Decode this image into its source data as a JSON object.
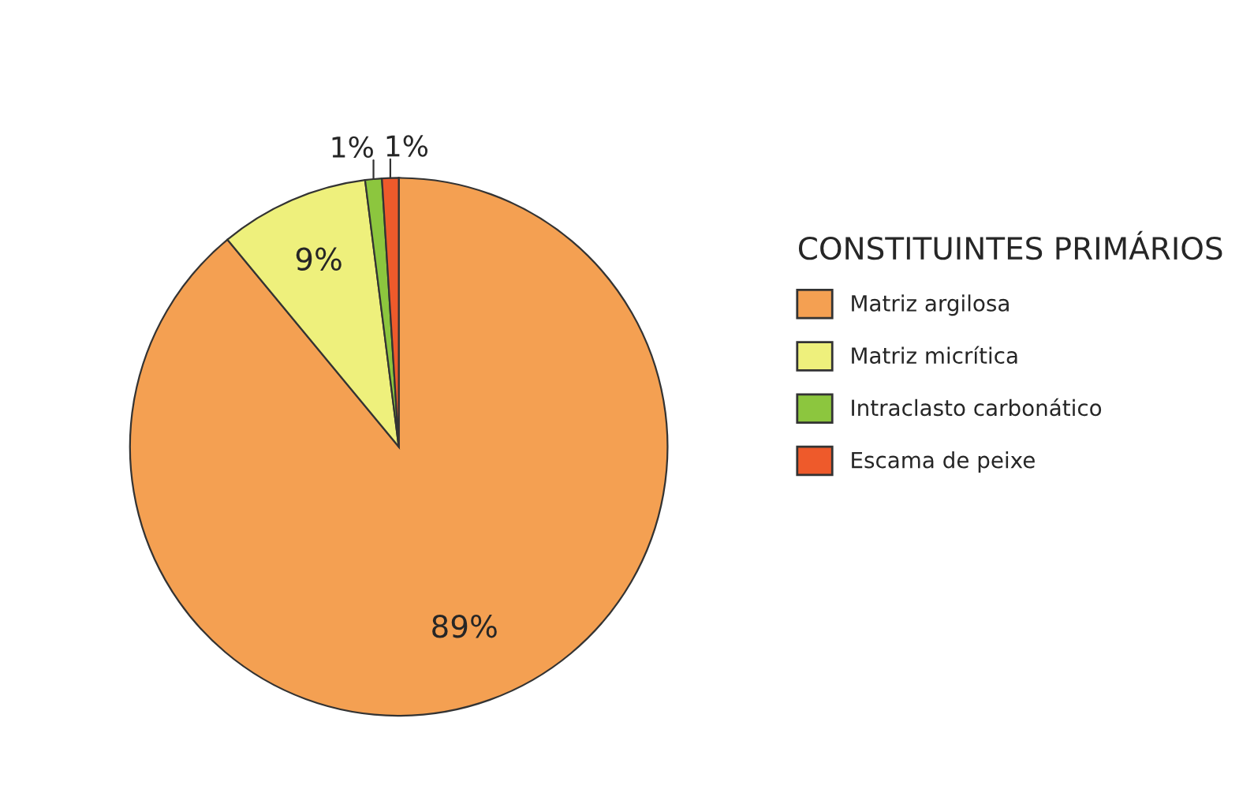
{
  "chart_data": {
    "type": "pie",
    "legend_title": "CONSTITUINTES PRIMÁRIOS",
    "legend": "right",
    "categories": [
      "Matriz argilosa",
      "Matriz micrítica",
      "Intraclasto carbonático",
      "Escama de peixe"
    ],
    "values": [
      89,
      9,
      1,
      1
    ],
    "colors": [
      "#f4a052",
      "#eef07c",
      "#8cc63e",
      "#ee5a2b"
    ],
    "value_labels": [
      "89%",
      "9%",
      "1%",
      "1%"
    ]
  }
}
